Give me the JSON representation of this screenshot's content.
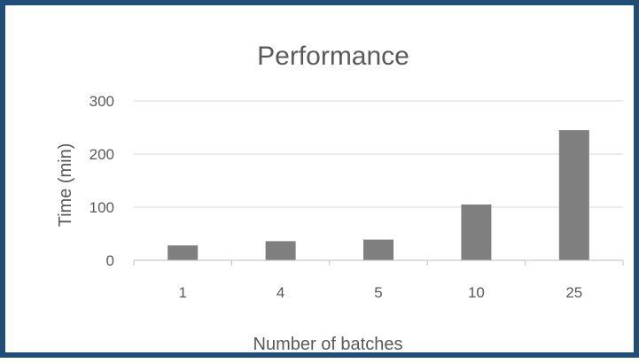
{
  "chart_data": {
    "type": "bar",
    "title": "Performance",
    "xlabel": "Number of batches",
    "ylabel": "Time (min)",
    "categories": [
      "1",
      "4",
      "5",
      "10",
      "25"
    ],
    "values": [
      28,
      36,
      39,
      105,
      245
    ],
    "ylim": [
      0,
      300
    ],
    "yticks": [
      0,
      100,
      200,
      300
    ],
    "grid": true,
    "legend": "none",
    "colors": {
      "bar": "#7f7f7f",
      "grid": "#d9d9d9",
      "axis": "#bfbfbf",
      "text": "#595959",
      "border": "#1f4e79"
    }
  }
}
